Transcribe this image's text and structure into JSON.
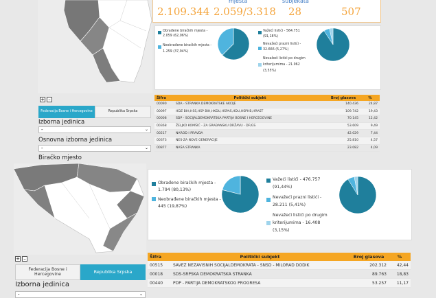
{
  "top_stats": {
    "labels": [
      "mjesta",
      "subjekata"
    ],
    "values": [
      "2.109.344",
      "2.059/3.318",
      "28",
      "507"
    ]
  },
  "fbih": {
    "turnout_legend": [
      {
        "label": "Obrađene biračkih mjesta -",
        "value": "2.059 (62,06%)",
        "color": "#1f7f9c"
      },
      {
        "label": "Neobrađene biračkih mjesta -",
        "value": "1.259 (37,94%)",
        "color": "#4fb4de"
      }
    ],
    "ballot_legend": [
      {
        "label": "Važeći listići -",
        "value": "564.751",
        "pct": "(91,18%)",
        "color": "#1f7f9c"
      },
      {
        "label": "Nevažeći prazni listići -",
        "value": "32.666 (5,27%)",
        "color": "#4fb4de"
      },
      {
        "label": "Nevažeći listići po drugim",
        "value": "kriterijumima - 21.962",
        "pct": "(3,55%)",
        "color": "#9fd4ec"
      }
    ],
    "table": {
      "headers": [
        "Šifra",
        "Politički subjekt",
        "Broj glasova",
        "%"
      ],
      "rows": [
        {
          "code": "00090",
          "name": "SDA - STRANKA DEMOKRATSKE AKCIJE",
          "votes": "140.436",
          "pct": "24,87"
        },
        {
          "code": "00097",
          "name": "HDZ BIH,HSS,HSP BIH,HKDU,HSPAS,HDU,HSPHB,HRAST",
          "votes": "109.742",
          "pct": "19,43"
        },
        {
          "code": "00008",
          "name": "SDP - SOCIJALDEMOKRATSKA PARTIJA BOSNE I HERCEGOVINE",
          "votes": "70.145",
          "pct": "12,42"
        },
        {
          "code": "00368",
          "name": "ŽELJKO KOMŠIĆ - ZA GRAĐANSKU DRŽAVU - DF/GS",
          "votes": "53.609",
          "pct": "9,49"
        },
        {
          "code": "00217",
          "name": "NAROD I PRAVDA",
          "votes": "42.029",
          "pct": "7,44"
        },
        {
          "code": "00373",
          "name": "NES-ZA NOVE GENERACIJE",
          "votes": "25.810",
          "pct": "4,57"
        },
        {
          "code": "00877",
          "name": "NAŠA STRANKA",
          "votes": "23.082",
          "pct": "4,09"
        }
      ]
    },
    "tabs": [
      "Federacija Bosne i Hercegovine",
      "Republika Srpska"
    ],
    "labels": {
      "izborna": "Izborna jedinica",
      "osnovna": "Osnovna izborna jedinica",
      "biracko": "Biračko mjesto"
    },
    "select_value": "-"
  },
  "rs": {
    "turnout_legend": [
      {
        "label": "Obrađene biračkih mjesta -",
        "value": "1.794 (80,13%)",
        "color": "#1f7f9c"
      },
      {
        "label": "Neobrađene biračkih mjesta -",
        "value": "445 (19,87%)",
        "color": "#4fb4de"
      }
    ],
    "ballot_legend": [
      {
        "label": "Važeći listići -",
        "value": "476.757",
        "pct": "(91,44%)",
        "color": "#1f7f9c"
      },
      {
        "label": "Nevažeći prazni listići -",
        "value": "28.211 (5,41%)",
        "color": "#4fb4de"
      },
      {
        "label": "Nevažeći listići po drugim",
        "value": "kriterijumima - 16.408",
        "pct": "(3,15%)",
        "color": "#9fd4ec"
      }
    ],
    "table": {
      "headers": [
        "Šifra",
        "Politički subjekt",
        "Broj glasova",
        "%"
      ],
      "rows": [
        {
          "code": "00515",
          "name": "SAVEZ NEZAVISNIH SOCIJALDEMOKRATA - SNSD - MILORAD DODIK",
          "votes": "202.312",
          "pct": "42,44"
        },
        {
          "code": "00018",
          "name": "SDS-SRPSKA DEMOKRATSKA STRANKA",
          "votes": "89.763",
          "pct": "18,83"
        },
        {
          "code": "00440",
          "name": "PDP - PARTIJA DEMOKRATSKOG PROGRESA",
          "votes": "53.257",
          "pct": "11,17"
        }
      ]
    },
    "tabs": [
      "Federacija Bosne i Hercegovine",
      "Republika Srpska"
    ],
    "labels": {
      "izborna": "Izborna jedinica"
    },
    "select_value": "-"
  },
  "zoom": {
    "plus": "+",
    "minus": "–"
  },
  "colors": {
    "dark": "#1f7f9c",
    "mid": "#4fb4de",
    "light": "#9fd4ec",
    "orange": "#f5a623",
    "accent": "#f4a43b"
  }
}
